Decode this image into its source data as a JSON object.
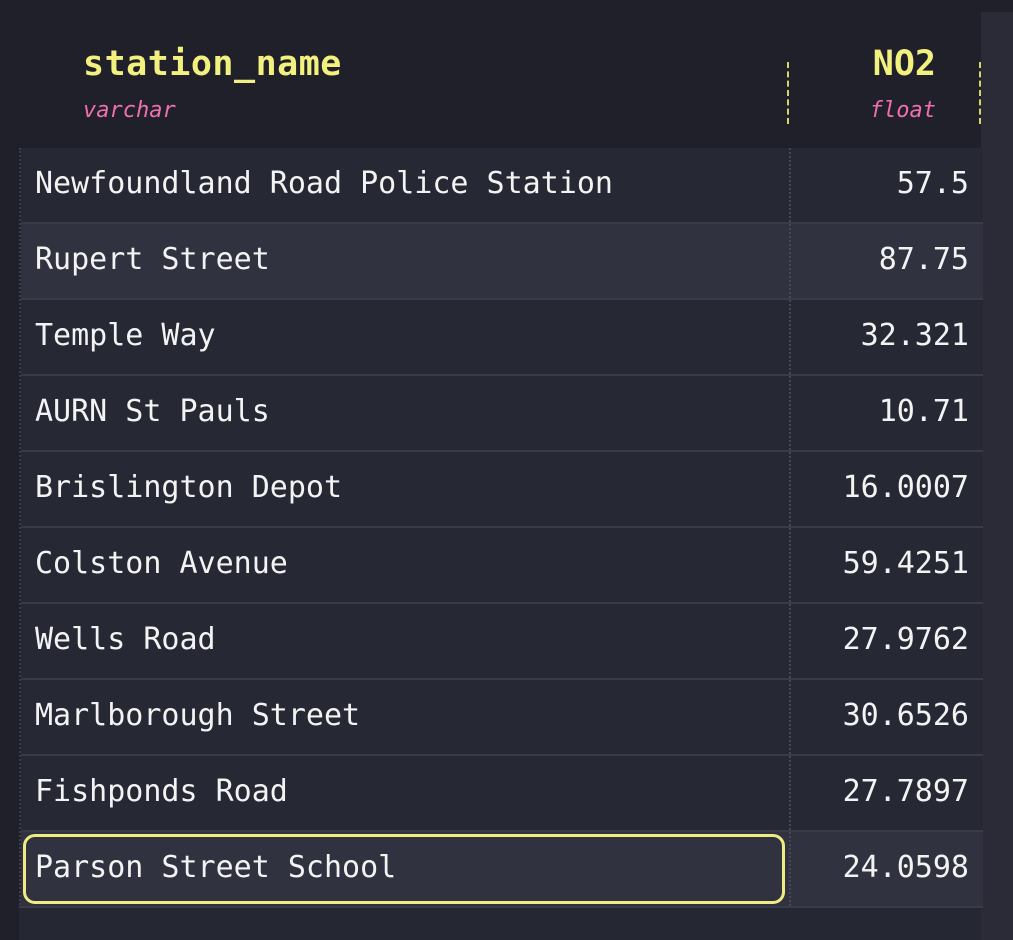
{
  "columns": [
    {
      "name": "station_name",
      "type": "varchar"
    },
    {
      "name": "NO2",
      "type": "float"
    }
  ],
  "rows": [
    {
      "station_name": "Newfoundland Road Police Station",
      "NO2": "57.5"
    },
    {
      "station_name": "Rupert Street",
      "NO2": "87.75"
    },
    {
      "station_name": "Temple Way",
      "NO2": "32.321"
    },
    {
      "station_name": "AURN St Pauls",
      "NO2": "10.71"
    },
    {
      "station_name": "Brislington Depot",
      "NO2": "16.0007"
    },
    {
      "station_name": "Colston Avenue",
      "NO2": "59.4251"
    },
    {
      "station_name": "Wells Road",
      "NO2": "27.9762"
    },
    {
      "station_name": "Marlborough Street",
      "NO2": "30.6526"
    },
    {
      "station_name": "Fishponds Road",
      "NO2": "27.7897"
    },
    {
      "station_name": "Parson Street School",
      "NO2": "24.0598"
    }
  ],
  "selection": {
    "row": 9,
    "column": "station_name"
  },
  "colors": {
    "background": "#1f2029",
    "header_name": "#f2f07f",
    "header_type": "#ef6fb0",
    "row": "#262833",
    "row_alt": "#30323f",
    "selection_outline": "#eeec83",
    "text": "#f3f3f3"
  }
}
